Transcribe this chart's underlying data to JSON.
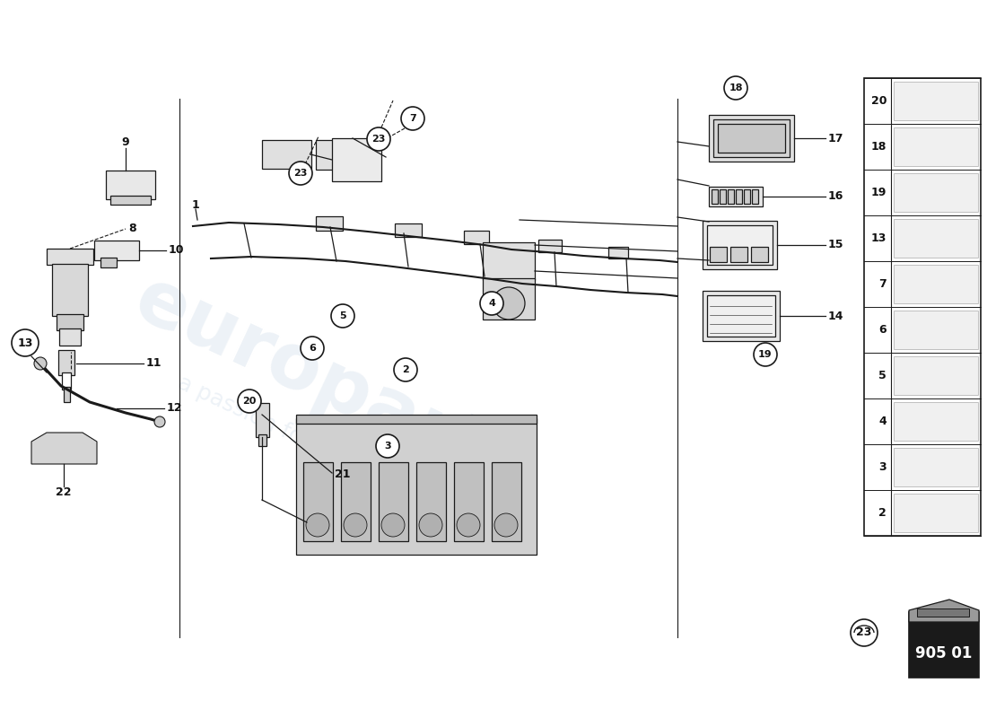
{
  "bg_color": "#ffffff",
  "line_color": "#1a1a1a",
  "text_color": "#111111",
  "part_number_bg": "#1a1a1a",
  "part_number_text": "#ffffff",
  "part_number": "905 01",
  "component_fill": "#e8e8e8",
  "watermark_color": "#c5d5e5",
  "watermark_alpha": 0.3,
  "parts_table": [
    20,
    18,
    19,
    13,
    7,
    6,
    5,
    4,
    3,
    2
  ],
  "figsize": [
    11.0,
    8.0
  ],
  "dpi": 100
}
